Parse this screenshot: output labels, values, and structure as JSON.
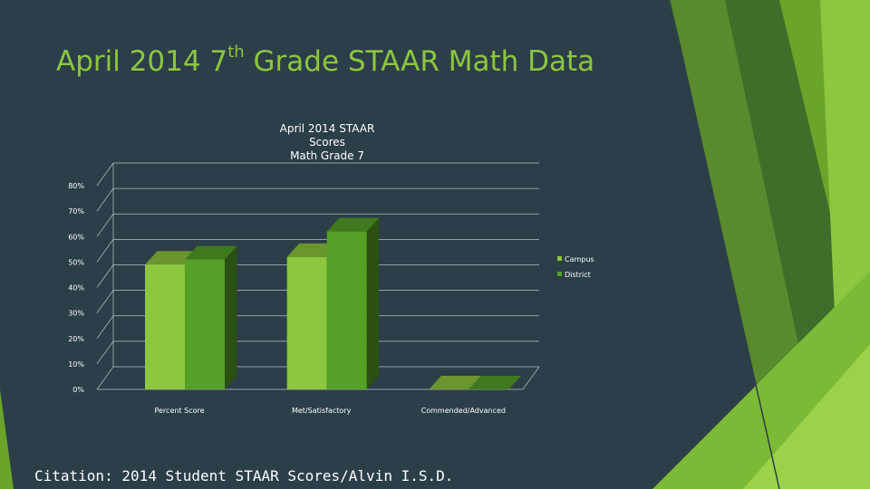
{
  "slide": {
    "title_main": "April 2014 7",
    "title_sup": "th",
    "title_rest": " Grade STAAR Math Data",
    "citation": "Citation: 2014 Student STAAR Scores/Alvin I.S.D."
  },
  "colors": {
    "background": "#2c3e48",
    "title": "#8dc63f",
    "campus": "#8dc63f",
    "district": "#55a026"
  },
  "chart_data": {
    "type": "bar",
    "title_lines": [
      "April 2014 STAAR",
      "Scores",
      "Math Grade 7"
    ],
    "categories": [
      "Percent Score",
      "Met/Satisfactory",
      "Commended/Advanced"
    ],
    "series": [
      {
        "name": "Campus",
        "values": [
          49,
          52,
          0
        ]
      },
      {
        "name": "District",
        "values": [
          51,
          62,
          0
        ]
      }
    ],
    "ylim": [
      0,
      80
    ],
    "yticks": [
      "0%",
      "10%",
      "20%",
      "30%",
      "40%",
      "50%",
      "60%",
      "70%",
      "80%"
    ],
    "grid": true,
    "legend": "right"
  }
}
